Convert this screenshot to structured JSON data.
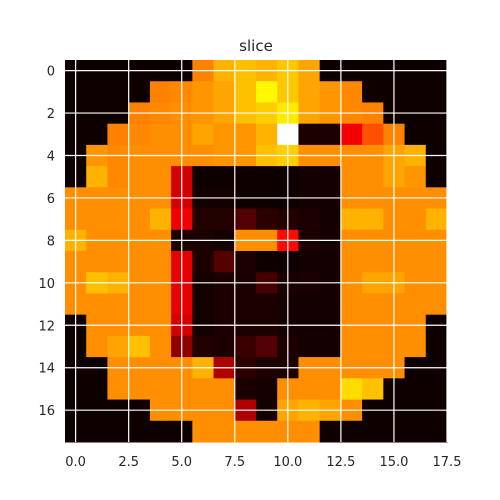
{
  "chart_data": {
    "type": "heatmap",
    "title": "slice",
    "colormap": "hot",
    "grid": true,
    "xlim": [
      -0.5,
      17.5
    ],
    "ylim": [
      17.5,
      -0.5
    ],
    "xticks": [
      0.0,
      2.5,
      5.0,
      7.5,
      10.0,
      12.5,
      15.0,
      17.5
    ],
    "xtick_labels": [
      "0.0",
      "2.5",
      "5.0",
      "7.5",
      "10.0",
      "12.5",
      "15.0",
      "17.5"
    ],
    "yticks": [
      0,
      2,
      4,
      6,
      8,
      10,
      12,
      14,
      16
    ],
    "ytick_labels": [
      "0",
      "2",
      "4",
      "6",
      "8",
      "10",
      "12",
      "14",
      "16"
    ],
    "value_range": [
      0,
      1
    ],
    "values": [
      [
        0.02,
        0.02,
        0.02,
        0.02,
        0.02,
        0.02,
        0.55,
        0.62,
        0.64,
        0.62,
        0.65,
        0.6,
        0.02,
        0.02,
        0.02,
        0.02,
        0.02,
        0.02
      ],
      [
        0.02,
        0.02,
        0.02,
        0.02,
        0.55,
        0.56,
        0.58,
        0.6,
        0.64,
        0.72,
        0.65,
        0.6,
        0.58,
        0.56,
        0.02,
        0.02,
        0.02,
        0.02
      ],
      [
        0.02,
        0.02,
        0.02,
        0.55,
        0.56,
        0.57,
        0.58,
        0.6,
        0.64,
        0.66,
        0.7,
        0.6,
        0.58,
        0.56,
        0.55,
        0.02,
        0.02,
        0.02
      ],
      [
        0.02,
        0.02,
        0.55,
        0.56,
        0.57,
        0.57,
        0.6,
        0.58,
        0.58,
        0.62,
        1.0,
        0.04,
        0.04,
        0.35,
        0.48,
        0.55,
        0.02,
        0.02
      ],
      [
        0.02,
        0.58,
        0.56,
        0.57,
        0.57,
        0.57,
        0.57,
        0.58,
        0.58,
        0.64,
        0.66,
        0.57,
        0.57,
        0.57,
        0.57,
        0.6,
        0.62,
        0.02
      ],
      [
        0.02,
        0.62,
        0.56,
        0.57,
        0.57,
        0.3,
        0.02,
        0.02,
        0.02,
        0.02,
        0.02,
        0.03,
        0.03,
        0.57,
        0.57,
        0.6,
        0.58,
        0.02
      ],
      [
        0.57,
        0.57,
        0.57,
        0.57,
        0.57,
        0.3,
        0.03,
        0.03,
        0.02,
        0.02,
        0.02,
        0.03,
        0.03,
        0.57,
        0.57,
        0.57,
        0.57,
        0.57
      ],
      [
        0.57,
        0.57,
        0.57,
        0.57,
        0.62,
        0.35,
        0.05,
        0.05,
        0.12,
        0.06,
        0.05,
        0.04,
        0.03,
        0.62,
        0.62,
        0.57,
        0.57,
        0.62
      ],
      [
        0.62,
        0.57,
        0.57,
        0.57,
        0.57,
        0.04,
        0.04,
        0.03,
        0.57,
        0.57,
        0.38,
        0.04,
        0.03,
        0.57,
        0.57,
        0.57,
        0.57,
        0.57
      ],
      [
        0.57,
        0.57,
        0.57,
        0.57,
        0.57,
        0.33,
        0.04,
        0.12,
        0.04,
        0.02,
        0.02,
        0.03,
        0.03,
        0.57,
        0.57,
        0.57,
        0.57,
        0.57
      ],
      [
        0.57,
        0.64,
        0.62,
        0.57,
        0.57,
        0.33,
        0.03,
        0.04,
        0.04,
        0.1,
        0.04,
        0.04,
        0.03,
        0.57,
        0.6,
        0.6,
        0.57,
        0.57
      ],
      [
        0.57,
        0.57,
        0.57,
        0.57,
        0.57,
        0.33,
        0.03,
        0.04,
        0.04,
        0.04,
        0.03,
        0.03,
        0.03,
        0.57,
        0.57,
        0.57,
        0.57,
        0.57
      ],
      [
        0.02,
        0.57,
        0.57,
        0.57,
        0.57,
        0.3,
        0.03,
        0.04,
        0.04,
        0.04,
        0.03,
        0.03,
        0.03,
        0.57,
        0.57,
        0.57,
        0.57,
        0.02
      ],
      [
        0.02,
        0.57,
        0.6,
        0.64,
        0.57,
        0.2,
        0.05,
        0.04,
        0.08,
        0.12,
        0.04,
        0.03,
        0.03,
        0.57,
        0.57,
        0.57,
        0.57,
        0.02
      ],
      [
        0.02,
        0.02,
        0.57,
        0.57,
        0.57,
        0.57,
        0.62,
        0.25,
        0.06,
        0.04,
        0.04,
        0.57,
        0.57,
        0.57,
        0.57,
        0.57,
        0.02,
        0.02
      ],
      [
        0.02,
        0.02,
        0.57,
        0.57,
        0.57,
        0.57,
        0.57,
        0.57,
        0.04,
        0.03,
        0.57,
        0.57,
        0.57,
        0.68,
        0.64,
        0.02,
        0.02,
        0.02
      ],
      [
        0.02,
        0.02,
        0.02,
        0.02,
        0.57,
        0.57,
        0.57,
        0.57,
        0.25,
        0.03,
        0.6,
        0.62,
        0.6,
        0.57,
        0.02,
        0.02,
        0.02,
        0.02
      ],
      [
        0.02,
        0.02,
        0.02,
        0.02,
        0.02,
        0.02,
        0.57,
        0.57,
        0.57,
        0.57,
        0.57,
        0.57,
        0.02,
        0.02,
        0.02,
        0.02,
        0.02,
        0.02
      ]
    ]
  }
}
